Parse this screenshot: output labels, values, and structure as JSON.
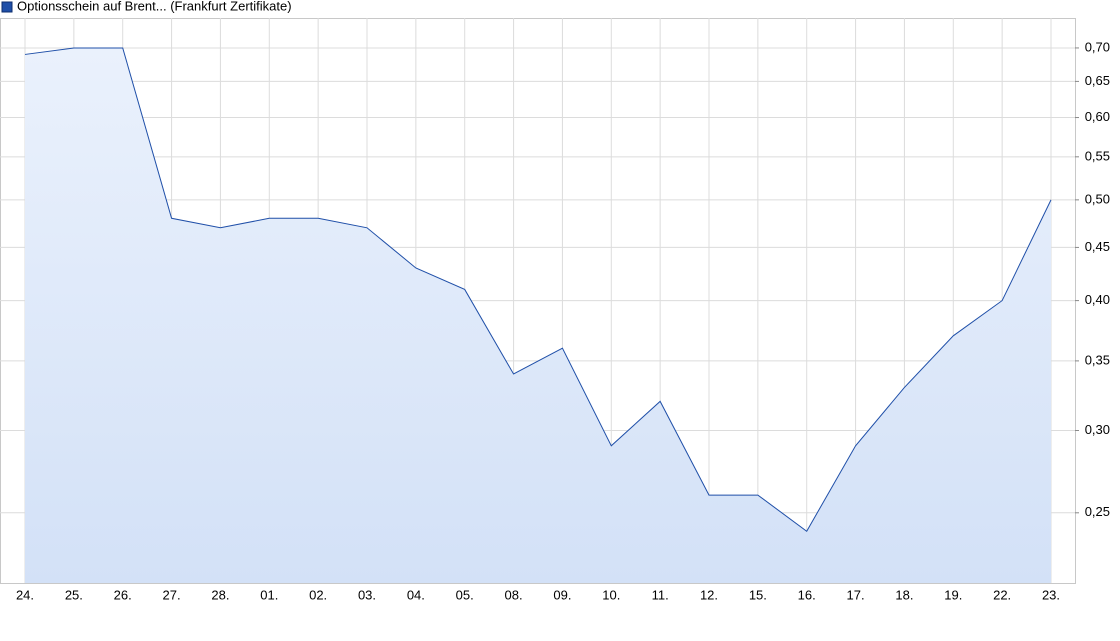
{
  "chart_data": {
    "type": "line",
    "legend": "Optionsschein auf Brent... (Frankfurt Zertifikate)",
    "categories": [
      "24.",
      "25.",
      "26.",
      "27.",
      "28.",
      "01.",
      "02.",
      "03.",
      "04.",
      "05.",
      "08.",
      "09.",
      "10.",
      "11.",
      "12.",
      "15.",
      "16.",
      "17.",
      "18.",
      "19.",
      "22.",
      "23."
    ],
    "series": [
      {
        "name": "Optionsschein auf Brent... (Frankfurt Zertifikate)",
        "color": "#1f4fa8",
        "values": [
          0.69,
          0.7,
          0.7,
          0.48,
          0.47,
          0.48,
          0.48,
          0.47,
          0.43,
          0.41,
          0.34,
          0.36,
          0.29,
          0.32,
          0.26,
          0.26,
          0.24,
          0.29,
          0.33,
          0.37,
          0.4,
          0.5
        ]
      }
    ],
    "log_scale": true,
    "ylim": [
      0.214,
      0.748
    ],
    "yticks": [
      {
        "value": 0.25,
        "label": "0,25"
      },
      {
        "value": 0.3,
        "label": "0,30"
      },
      {
        "value": 0.35,
        "label": "0,35"
      },
      {
        "value": 0.4,
        "label": "0,40"
      },
      {
        "value": 0.45,
        "label": "0,45"
      },
      {
        "value": 0.5,
        "label": "0,50"
      },
      {
        "value": 0.55,
        "label": "0,55"
      },
      {
        "value": 0.6,
        "label": "0,60"
      },
      {
        "value": 0.65,
        "label": "0,65"
      },
      {
        "value": 0.7,
        "label": "0,70"
      }
    ],
    "grid": true
  }
}
